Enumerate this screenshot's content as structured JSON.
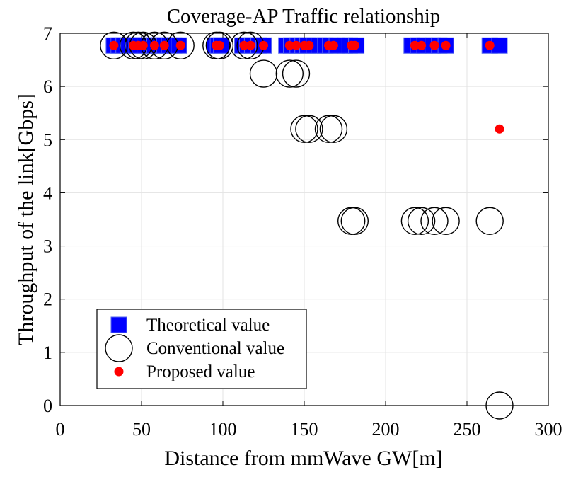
{
  "chart_data": {
    "type": "scatter",
    "title": "Coverage-AP Traffic relationship",
    "xlabel": "Distance from mmWave GW[m]",
    "ylabel": "Throughput of the link[Gbps]",
    "xlim": [
      0,
      300
    ],
    "ylim": [
      0,
      7
    ],
    "xticks": [
      0,
      50,
      100,
      150,
      200,
      250,
      300
    ],
    "yticks": [
      0,
      1,
      2,
      3,
      4,
      5,
      6,
      7
    ],
    "grid": true,
    "legend_position": "bottom-left",
    "series": [
      {
        "name": "Theoretical value",
        "marker": "square",
        "color": "#0000ff",
        "x": [
          33,
          36,
          39,
          42,
          45,
          47,
          49,
          52,
          55,
          58,
          61,
          64,
          67,
          70,
          73,
          95,
          97,
          99,
          112,
          115,
          118,
          122,
          125,
          139,
          142,
          146,
          149,
          152,
          156,
          159,
          163,
          166,
          170,
          175,
          178,
          182,
          216,
          220,
          224,
          229,
          233,
          237,
          264,
          270
        ],
        "y": [
          6.77,
          6.77,
          6.77,
          6.77,
          6.77,
          6.77,
          6.77,
          6.77,
          6.77,
          6.77,
          6.77,
          6.77,
          6.77,
          6.77,
          6.77,
          6.77,
          6.77,
          6.77,
          6.77,
          6.77,
          6.77,
          6.77,
          6.77,
          6.77,
          6.77,
          6.77,
          6.77,
          6.77,
          6.77,
          6.77,
          6.77,
          6.77,
          6.77,
          6.77,
          6.77,
          6.77,
          6.77,
          6.77,
          6.77,
          6.77,
          6.77,
          6.77,
          6.77,
          6.77
        ]
      },
      {
        "name": "Conventional value",
        "marker": "circle-open",
        "color": "#000000",
        "x": [
          33,
          45,
          48,
          51,
          58,
          64,
          74,
          96,
          98,
          113,
          117,
          125,
          141,
          145,
          150,
          153,
          165,
          168,
          179,
          181,
          218,
          222,
          230,
          237,
          264,
          270
        ],
        "y": [
          6.77,
          6.77,
          6.77,
          6.77,
          6.77,
          6.77,
          6.77,
          6.77,
          6.77,
          6.77,
          6.77,
          6.24,
          6.24,
          6.24,
          5.2,
          5.2,
          5.2,
          5.2,
          3.47,
          3.47,
          3.47,
          3.47,
          3.47,
          3.47,
          3.47,
          0
        ]
      },
      {
        "name": "Proposed value",
        "marker": "dot",
        "color": "#ff0000",
        "x": [
          33,
          45,
          48,
          51,
          58,
          64,
          74,
          96,
          98,
          113,
          117,
          125,
          141,
          145,
          150,
          153,
          165,
          168,
          179,
          181,
          218,
          222,
          230,
          237,
          264,
          270
        ],
        "y": [
          6.77,
          6.77,
          6.77,
          6.77,
          6.77,
          6.77,
          6.77,
          6.77,
          6.77,
          6.77,
          6.77,
          6.77,
          6.77,
          6.77,
          6.77,
          6.77,
          6.77,
          6.77,
          6.77,
          6.77,
          6.77,
          6.77,
          6.77,
          6.77,
          6.77,
          5.2
        ]
      }
    ]
  }
}
